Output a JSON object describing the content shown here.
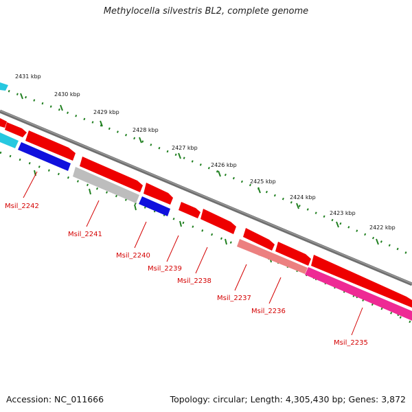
{
  "title": "Methylocella silvestris BL2, complete genome",
  "footer": {
    "accession": "Accession: NC_011666",
    "summary": "Topology: circular; Length: 4,305,430 bp; Genes: 3,872"
  },
  "colors": {
    "backbone": "#7a7a7a",
    "tick": "#1f7f1f",
    "gene_red": "#ee0000",
    "gene_blue": "#1010dd",
    "gene_cyan": "#27c8e0",
    "gene_gray": "#bdbdbd",
    "gene_salmon": "#ec8080",
    "gene_magenta": "#ee2a94",
    "label_color": "#d40000"
  },
  "kbp_labels": [
    "2431 kbp",
    "2430 kbp",
    "2429 kbp",
    "2428 kbp",
    "2427 kbp",
    "2426 kbp",
    "2425 kbp",
    "2424 kbp",
    "2423 kbp",
    "2422 kbp"
  ],
  "gene_labels": [
    "Msil_2242",
    "Msil_2241",
    "Msil_2240",
    "Msil_2239",
    "Msil_2238",
    "Msil_2237",
    "Msil_2236",
    "Msil_2235"
  ]
}
